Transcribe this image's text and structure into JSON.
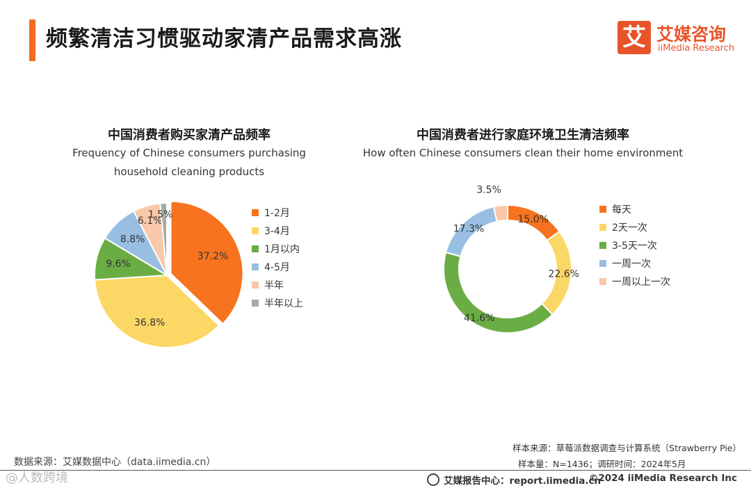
{
  "header": {
    "title": "频繁清洁习惯驱动家清产品需求高涨",
    "logo_mark": "艾",
    "logo_cn": "艾媒咨询",
    "logo_en": "iiMedia Research"
  },
  "chart_data": [
    {
      "type": "pie",
      "title": "中国消费者购买家清产品频率",
      "subtitle": "Frequency of Chinese consumers purchasing household cleaning products",
      "categories": [
        "1-2月",
        "3-4月",
        "1月以内",
        "4-5月",
        "半年",
        "半年以上"
      ],
      "values": [
        37.2,
        36.8,
        9.6,
        8.8,
        6.1,
        1.5
      ],
      "labels": [
        "37.2%",
        "36.8%",
        "9.6%",
        "8.8%",
        "6.1%",
        "1.5%"
      ],
      "colors": [
        "#f7731f",
        "#fbd765",
        "#6bad45",
        "#98bfe2",
        "#f9c7a9",
        "#a9a9a9"
      ],
      "legend_position": "right"
    },
    {
      "type": "pie",
      "style": "donut",
      "title": "中国消费者进行家庭环境卫生清洁频率",
      "subtitle": "How often Chinese consumers clean their home environment",
      "categories": [
        "每天",
        "2天一次",
        "3-5天一次",
        "一周一次",
        "一周以上一次"
      ],
      "values": [
        15.0,
        22.6,
        41.6,
        17.3,
        3.5
      ],
      "labels": [
        "15.0%",
        "22.6%",
        "41.6%",
        "17.3%",
        "3.5%"
      ],
      "colors": [
        "#f7731f",
        "#fbd765",
        "#6bad45",
        "#98bfe2",
        "#f9c7a9"
      ],
      "legend_position": "right"
    }
  ],
  "footer": {
    "data_source": "数据来源：艾媒数据中心（data.iimedia.cn）",
    "sample_source": "样本来源：草莓派数据调查与计算系统（Strawberry Pie）",
    "sample_size": "样本量：N=1436；调研时间：2024年5月",
    "report_center": "艾媒报告中心：report.iimedia.cn",
    "copyright": "©2024  iiMedia Research  Inc",
    "watermark": "@人数跨境"
  }
}
